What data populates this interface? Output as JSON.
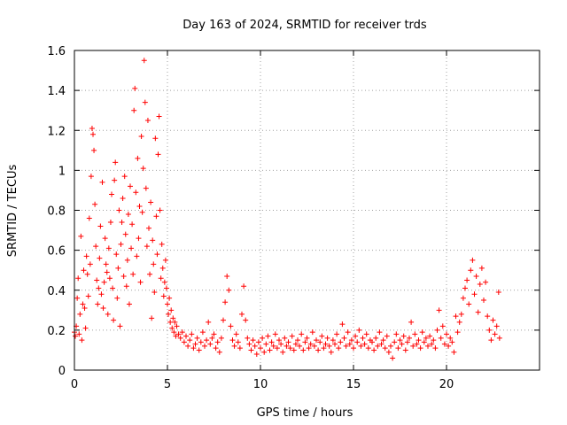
{
  "chart_data": {
    "type": "scatter",
    "title": "Day 163 of 2024, SRMTID for receiver trds",
    "xlabel": "GPS time / hours",
    "ylabel": "SRMTID / TECUs",
    "xlim": [
      0,
      25
    ],
    "ylim": [
      0,
      1.6
    ],
    "xticks": [
      0,
      5,
      10,
      15,
      20
    ],
    "xtick_labels": [
      "0",
      "5",
      "10",
      "15",
      "20"
    ],
    "yticks": [
      0,
      0.2,
      0.4,
      0.6,
      0.8,
      1,
      1.2,
      1.4,
      1.6
    ],
    "ytick_labels": [
      "0",
      "0.2",
      "0.4",
      "0.6",
      "0.8",
      "1",
      "1.2",
      "1.4",
      "1.6"
    ],
    "grid": true,
    "marker": "+",
    "series": [
      {
        "name": "SRMTID",
        "color": "#ff0000",
        "points": [
          [
            0.0,
            0.19
          ],
          [
            0.05,
            0.17
          ],
          [
            0.1,
            0.22
          ],
          [
            0.15,
            0.36
          ],
          [
            0.2,
            0.46
          ],
          [
            0.25,
            0.18
          ],
          [
            0.3,
            0.28
          ],
          [
            0.35,
            0.67
          ],
          [
            0.4,
            0.15
          ],
          [
            0.45,
            0.33
          ],
          [
            0.5,
            0.5
          ],
          [
            0.55,
            0.31
          ],
          [
            0.6,
            0.21
          ],
          [
            0.65,
            0.57
          ],
          [
            0.7,
            0.48
          ],
          [
            0.75,
            0.37
          ],
          [
            0.8,
            0.76
          ],
          [
            0.85,
            0.53
          ],
          [
            0.9,
            0.97
          ],
          [
            0.95,
            1.21
          ],
          [
            1.0,
            1.18
          ],
          [
            1.05,
            1.1
          ],
          [
            1.1,
            0.83
          ],
          [
            1.15,
            0.62
          ],
          [
            1.2,
            0.45
          ],
          [
            1.25,
            0.33
          ],
          [
            1.3,
            0.41
          ],
          [
            1.35,
            0.56
          ],
          [
            1.4,
            0.72
          ],
          [
            1.45,
            0.38
          ],
          [
            1.5,
            0.94
          ],
          [
            1.55,
            0.31
          ],
          [
            1.6,
            0.44
          ],
          [
            1.65,
            0.66
          ],
          [
            1.7,
            0.53
          ],
          [
            1.75,
            0.49
          ],
          [
            1.8,
            0.28
          ],
          [
            1.85,
            0.61
          ],
          [
            1.9,
            0.46
          ],
          [
            1.95,
            0.74
          ],
          [
            2.0,
            0.88
          ],
          [
            2.05,
            0.41
          ],
          [
            2.1,
            0.25
          ],
          [
            2.15,
            0.95
          ],
          [
            2.2,
            1.04
          ],
          [
            2.25,
            0.58
          ],
          [
            2.3,
            0.36
          ],
          [
            2.35,
            0.51
          ],
          [
            2.4,
            0.8
          ],
          [
            2.45,
            0.22
          ],
          [
            2.5,
            0.63
          ],
          [
            2.55,
            0.74
          ],
          [
            2.6,
            0.86
          ],
          [
            2.65,
            0.47
          ],
          [
            2.7,
            0.97
          ],
          [
            2.75,
            0.68
          ],
          [
            2.8,
            0.42
          ],
          [
            2.85,
            0.55
          ],
          [
            2.9,
            0.78
          ],
          [
            2.95,
            0.33
          ],
          [
            3.0,
            0.92
          ],
          [
            3.05,
            0.61
          ],
          [
            3.1,
            0.73
          ],
          [
            3.15,
            0.48
          ],
          [
            3.2,
            1.3
          ],
          [
            3.25,
            1.41
          ],
          [
            3.3,
            0.89
          ],
          [
            3.35,
            0.57
          ],
          [
            3.4,
            1.06
          ],
          [
            3.45,
            0.66
          ],
          [
            3.5,
            0.82
          ],
          [
            3.55,
            0.44
          ],
          [
            3.6,
            1.17
          ],
          [
            3.65,
            0.79
          ],
          [
            3.7,
            1.01
          ],
          [
            3.75,
            1.55
          ],
          [
            3.8,
            1.34
          ],
          [
            3.85,
            0.91
          ],
          [
            3.9,
            0.62
          ],
          [
            3.95,
            1.25
          ],
          [
            4.0,
            0.71
          ],
          [
            4.05,
            0.48
          ],
          [
            4.1,
            0.84
          ],
          [
            4.15,
            0.26
          ],
          [
            4.2,
            0.65
          ],
          [
            4.25,
            0.53
          ],
          [
            4.3,
            0.39
          ],
          [
            4.35,
            1.16
          ],
          [
            4.4,
            0.77
          ],
          [
            4.45,
            0.58
          ],
          [
            4.5,
            1.08
          ],
          [
            4.55,
            1.27
          ],
          [
            4.6,
            0.8
          ],
          [
            4.65,
            0.46
          ],
          [
            4.7,
            0.63
          ],
          [
            4.75,
            0.51
          ],
          [
            4.8,
            0.37
          ],
          [
            4.85,
            0.44
          ],
          [
            4.9,
            0.55
          ],
          [
            4.95,
            0.41
          ],
          [
            5.0,
            0.33
          ],
          [
            5.05,
            0.28
          ],
          [
            5.1,
            0.36
          ],
          [
            5.15,
            0.24
          ],
          [
            5.2,
            0.3
          ],
          [
            5.25,
            0.21
          ],
          [
            5.3,
            0.26
          ],
          [
            5.35,
            0.19
          ],
          [
            5.4,
            0.24
          ],
          [
            5.45,
            0.17
          ],
          [
            5.5,
            0.22
          ],
          [
            5.6,
            0.18
          ],
          [
            5.7,
            0.16
          ],
          [
            5.8,
            0.19
          ],
          [
            5.9,
            0.14
          ],
          [
            6.0,
            0.17
          ],
          [
            6.1,
            0.12
          ],
          [
            6.2,
            0.15
          ],
          [
            6.3,
            0.18
          ],
          [
            6.4,
            0.11
          ],
          [
            6.5,
            0.13
          ],
          [
            6.6,
            0.16
          ],
          [
            6.7,
            0.1
          ],
          [
            6.8,
            0.14
          ],
          [
            6.9,
            0.19
          ],
          [
            7.0,
            0.12
          ],
          [
            7.1,
            0.15
          ],
          [
            7.2,
            0.24
          ],
          [
            7.3,
            0.13
          ],
          [
            7.4,
            0.16
          ],
          [
            7.5,
            0.18
          ],
          [
            7.6,
            0.11
          ],
          [
            7.7,
            0.14
          ],
          [
            7.8,
            0.09
          ],
          [
            7.9,
            0.16
          ],
          [
            8.0,
            0.25
          ],
          [
            8.1,
            0.34
          ],
          [
            8.2,
            0.47
          ],
          [
            8.3,
            0.4
          ],
          [
            8.4,
            0.22
          ],
          [
            8.5,
            0.15
          ],
          [
            8.6,
            0.12
          ],
          [
            8.7,
            0.18
          ],
          [
            8.8,
            0.14
          ],
          [
            8.9,
            0.11
          ],
          [
            9.0,
            0.28
          ],
          [
            9.1,
            0.42
          ],
          [
            9.2,
            0.25
          ],
          [
            9.3,
            0.16
          ],
          [
            9.4,
            0.13
          ],
          [
            9.5,
            0.1
          ],
          [
            9.6,
            0.15
          ],
          [
            9.7,
            0.12
          ],
          [
            9.8,
            0.08
          ],
          [
            9.9,
            0.14
          ],
          [
            10.0,
            0.11
          ],
          [
            10.1,
            0.16
          ],
          [
            10.2,
            0.09
          ],
          [
            10.3,
            0.13
          ],
          [
            10.4,
            0.17
          ],
          [
            10.5,
            0.1
          ],
          [
            10.6,
            0.14
          ],
          [
            10.7,
            0.12
          ],
          [
            10.8,
            0.18
          ],
          [
            10.9,
            0.11
          ],
          [
            11.0,
            0.15
          ],
          [
            11.1,
            0.13
          ],
          [
            11.2,
            0.09
          ],
          [
            11.3,
            0.16
          ],
          [
            11.4,
            0.12
          ],
          [
            11.5,
            0.14
          ],
          [
            11.6,
            0.11
          ],
          [
            11.7,
            0.17
          ],
          [
            11.8,
            0.1
          ],
          [
            11.9,
            0.13
          ],
          [
            12.0,
            0.15
          ],
          [
            12.1,
            0.12
          ],
          [
            12.2,
            0.18
          ],
          [
            12.3,
            0.1
          ],
          [
            12.4,
            0.14
          ],
          [
            12.5,
            0.16
          ],
          [
            12.6,
            0.11
          ],
          [
            12.7,
            0.13
          ],
          [
            12.8,
            0.19
          ],
          [
            12.9,
            0.12
          ],
          [
            13.0,
            0.15
          ],
          [
            13.1,
            0.1
          ],
          [
            13.2,
            0.14
          ],
          [
            13.3,
            0.17
          ],
          [
            13.4,
            0.11
          ],
          [
            13.5,
            0.13
          ],
          [
            13.6,
            0.16
          ],
          [
            13.7,
            0.12
          ],
          [
            13.8,
            0.09
          ],
          [
            13.9,
            0.15
          ],
          [
            14.0,
            0.13
          ],
          [
            14.1,
            0.18
          ],
          [
            14.2,
            0.11
          ],
          [
            14.3,
            0.14
          ],
          [
            14.4,
            0.23
          ],
          [
            14.5,
            0.16
          ],
          [
            14.6,
            0.12
          ],
          [
            14.7,
            0.19
          ],
          [
            14.8,
            0.13
          ],
          [
            14.9,
            0.15
          ],
          [
            15.0,
            0.11
          ],
          [
            15.1,
            0.17
          ],
          [
            15.2,
            0.14
          ],
          [
            15.3,
            0.2
          ],
          [
            15.4,
            0.12
          ],
          [
            15.5,
            0.16
          ],
          [
            15.6,
            0.13
          ],
          [
            15.7,
            0.18
          ],
          [
            15.8,
            0.11
          ],
          [
            15.9,
            0.15
          ],
          [
            16.0,
            0.14
          ],
          [
            16.1,
            0.1
          ],
          [
            16.2,
            0.16
          ],
          [
            16.3,
            0.12
          ],
          [
            16.4,
            0.19
          ],
          [
            16.5,
            0.13
          ],
          [
            16.6,
            0.15
          ],
          [
            16.7,
            0.11
          ],
          [
            16.8,
            0.17
          ],
          [
            16.9,
            0.09
          ],
          [
            17.0,
            0.12
          ],
          [
            17.1,
            0.06
          ],
          [
            17.2,
            0.14
          ],
          [
            17.3,
            0.18
          ],
          [
            17.4,
            0.11
          ],
          [
            17.5,
            0.15
          ],
          [
            17.6,
            0.13
          ],
          [
            17.7,
            0.17
          ],
          [
            17.8,
            0.1
          ],
          [
            17.9,
            0.14
          ],
          [
            18.0,
            0.16
          ],
          [
            18.1,
            0.24
          ],
          [
            18.2,
            0.12
          ],
          [
            18.3,
            0.18
          ],
          [
            18.4,
            0.13
          ],
          [
            18.5,
            0.15
          ],
          [
            18.6,
            0.11
          ],
          [
            18.7,
            0.19
          ],
          [
            18.8,
            0.14
          ],
          [
            18.9,
            0.16
          ],
          [
            19.0,
            0.12
          ],
          [
            19.1,
            0.17
          ],
          [
            19.2,
            0.13
          ],
          [
            19.3,
            0.15
          ],
          [
            19.4,
            0.11
          ],
          [
            19.5,
            0.2
          ],
          [
            19.6,
            0.3
          ],
          [
            19.7,
            0.16
          ],
          [
            19.8,
            0.22
          ],
          [
            19.9,
            0.13
          ],
          [
            20.0,
            0.18
          ],
          [
            20.1,
            0.12
          ],
          [
            20.2,
            0.16
          ],
          [
            20.3,
            0.14
          ],
          [
            20.4,
            0.09
          ],
          [
            20.5,
            0.27
          ],
          [
            20.6,
            0.19
          ],
          [
            20.7,
            0.24
          ],
          [
            20.8,
            0.28
          ],
          [
            20.9,
            0.36
          ],
          [
            21.0,
            0.41
          ],
          [
            21.1,
            0.45
          ],
          [
            21.2,
            0.33
          ],
          [
            21.3,
            0.5
          ],
          [
            21.4,
            0.55
          ],
          [
            21.5,
            0.38
          ],
          [
            21.6,
            0.47
          ],
          [
            21.7,
            0.29
          ],
          [
            21.8,
            0.43
          ],
          [
            21.9,
            0.51
          ],
          [
            22.0,
            0.35
          ],
          [
            22.1,
            0.44
          ],
          [
            22.2,
            0.27
          ],
          [
            22.3,
            0.2
          ],
          [
            22.4,
            0.15
          ],
          [
            22.5,
            0.25
          ],
          [
            22.6,
            0.18
          ],
          [
            22.7,
            0.22
          ],
          [
            22.8,
            0.39
          ],
          [
            22.85,
            0.16
          ]
        ]
      }
    ]
  }
}
